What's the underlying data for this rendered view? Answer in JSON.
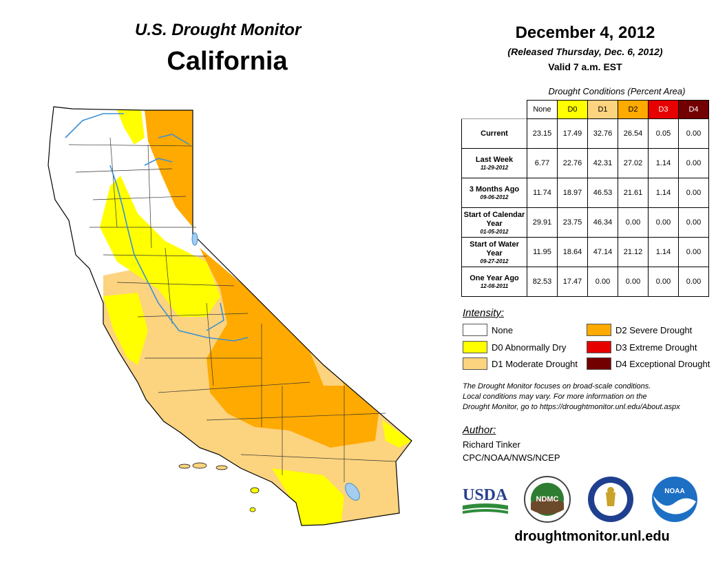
{
  "header": {
    "title": "U.S. Drought Monitor",
    "state": "California",
    "date": "December 4, 2012",
    "released": "(Released Thursday, Dec. 6, 2012)",
    "valid": "Valid 7 a.m. EST"
  },
  "table": {
    "caption": "Drought Conditions (Percent Area)",
    "columns": [
      {
        "label": "None",
        "color": "#ffffff"
      },
      {
        "label": "D0",
        "color": "#ffff00"
      },
      {
        "label": "D1",
        "color": "#fcd37f"
      },
      {
        "label": "D2",
        "color": "#ffaa00"
      },
      {
        "label": "D3",
        "color": "#e60000"
      },
      {
        "label": "D4",
        "color": "#730000"
      }
    ],
    "rows": [
      {
        "label": "Current",
        "sub": "",
        "values": [
          "23.15",
          "17.49",
          "32.76",
          "26.54",
          "0.05",
          "0.00"
        ]
      },
      {
        "label": "Last Week",
        "sub": "11-29-2012",
        "values": [
          "6.77",
          "22.76",
          "42.31",
          "27.02",
          "1.14",
          "0.00"
        ]
      },
      {
        "label": "3 Months Ago",
        "sub": "09-06-2012",
        "values": [
          "11.74",
          "18.97",
          "46.53",
          "21.61",
          "1.14",
          "0.00"
        ]
      },
      {
        "label": "Start of Calendar Year",
        "sub": "01-05-2012",
        "values": [
          "29.91",
          "23.75",
          "46.34",
          "0.00",
          "0.00",
          "0.00"
        ]
      },
      {
        "label": "Start of Water Year",
        "sub": "09-27-2012",
        "values": [
          "11.95",
          "18.64",
          "47.14",
          "21.12",
          "1.14",
          "0.00"
        ]
      },
      {
        "label": "One Year Ago",
        "sub": "12-08-2011",
        "values": [
          "82.53",
          "17.47",
          "0.00",
          "0.00",
          "0.00",
          "0.00"
        ]
      }
    ]
  },
  "legend": {
    "title": "Intensity:",
    "items": [
      {
        "label": "None",
        "color": "#ffffff"
      },
      {
        "label": "D0 Abnormally Dry",
        "color": "#ffff00"
      },
      {
        "label": "D1 Moderate Drought",
        "color": "#fcd37f"
      },
      {
        "label": "D2 Severe Drought",
        "color": "#ffaa00"
      },
      {
        "label": "D3 Extreme Drought",
        "color": "#e60000"
      },
      {
        "label": "D4 Exceptional Drought",
        "color": "#730000"
      }
    ]
  },
  "note": {
    "line1": "The Drought Monitor focuses on broad-scale conditions.",
    "line2": "Local conditions may vary. For more information on the",
    "line3": "Drought Monitor, go to https://droughtmonitor.unl.edu/About.aspx"
  },
  "author": {
    "title": "Author:",
    "name": "Richard Tinker",
    "org": "CPC/NOAA/NWS/NCEP"
  },
  "logos": {
    "usda": "USDA",
    "ndmc": "NDMC",
    "noaa": "NOAA"
  },
  "footer": {
    "site": "droughtmonitor.unl.edu"
  }
}
